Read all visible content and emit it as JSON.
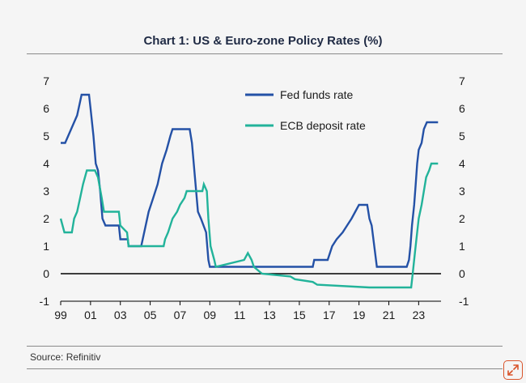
{
  "title": "Chart 1: US & Euro-zone Policy Rates (%)",
  "source": "Source: Refinitiv",
  "colors": {
    "fed": "#2451a6",
    "ecb": "#22b39a",
    "zero": "#000000",
    "text": "#1a1a1a"
  },
  "icons": {
    "expand": "expand-diagonal-icon"
  },
  "chart_data": {
    "type": "line",
    "title": "Chart 1: US & Euro-zone Policy Rates (%)",
    "xlabel": "",
    "ylabel": "",
    "xlim": [
      1999.0,
      2024.5
    ],
    "ylim": [
      -1,
      7
    ],
    "x_ticks": [
      1999,
      2001,
      2003,
      2005,
      2007,
      2009,
      2011,
      2013,
      2015,
      2017,
      2019,
      2021,
      2023
    ],
    "x_tick_labels": [
      "99",
      "01",
      "03",
      "05",
      "07",
      "09",
      "11",
      "13",
      "15",
      "17",
      "19",
      "21",
      "23"
    ],
    "y_ticks": [
      -1,
      0,
      1,
      2,
      3,
      4,
      5,
      6,
      7
    ],
    "y_tick_labels": [
      "-1",
      "0",
      "1",
      "2",
      "3",
      "4",
      "5",
      "6",
      "7"
    ],
    "grid": false,
    "legend_position": "top-center",
    "series": [
      {
        "name": "Fed funds rate",
        "color": "#2451a6",
        "points": [
          [
            1999.0,
            4.75
          ],
          [
            1999.3,
            4.75
          ],
          [
            1999.5,
            5.0
          ],
          [
            1999.7,
            5.25
          ],
          [
            1999.9,
            5.5
          ],
          [
            2000.1,
            5.75
          ],
          [
            2000.3,
            6.25
          ],
          [
            2000.4,
            6.5
          ],
          [
            2000.9,
            6.5
          ],
          [
            2001.0,
            6.0
          ],
          [
            2001.2,
            5.0
          ],
          [
            2001.35,
            4.0
          ],
          [
            2001.5,
            3.75
          ],
          [
            2001.65,
            3.0
          ],
          [
            2001.8,
            2.0
          ],
          [
            2002.0,
            1.75
          ],
          [
            2002.9,
            1.75
          ],
          [
            2003.0,
            1.25
          ],
          [
            2003.5,
            1.25
          ],
          [
            2003.55,
            1.0
          ],
          [
            2004.4,
            1.0
          ],
          [
            2004.6,
            1.5
          ],
          [
            2004.9,
            2.25
          ],
          [
            2005.2,
            2.75
          ],
          [
            2005.5,
            3.25
          ],
          [
            2005.8,
            4.0
          ],
          [
            2006.1,
            4.5
          ],
          [
            2006.35,
            5.0
          ],
          [
            2006.5,
            5.25
          ],
          [
            2007.65,
            5.25
          ],
          [
            2007.8,
            4.75
          ],
          [
            2008.0,
            3.5
          ],
          [
            2008.2,
            2.25
          ],
          [
            2008.4,
            2.0
          ],
          [
            2008.75,
            1.5
          ],
          [
            2008.9,
            0.5
          ],
          [
            2009.0,
            0.25
          ],
          [
            2015.9,
            0.25
          ],
          [
            2016.0,
            0.5
          ],
          [
            2016.9,
            0.5
          ],
          [
            2017.2,
            1.0
          ],
          [
            2017.5,
            1.25
          ],
          [
            2017.9,
            1.5
          ],
          [
            2018.2,
            1.75
          ],
          [
            2018.5,
            2.0
          ],
          [
            2018.75,
            2.25
          ],
          [
            2019.0,
            2.5
          ],
          [
            2019.55,
            2.5
          ],
          [
            2019.7,
            2.0
          ],
          [
            2019.85,
            1.75
          ],
          [
            2020.2,
            0.25
          ],
          [
            2022.2,
            0.25
          ],
          [
            2022.35,
            0.5
          ],
          [
            2022.45,
            1.0
          ],
          [
            2022.55,
            1.75
          ],
          [
            2022.7,
            2.5
          ],
          [
            2022.8,
            3.25
          ],
          [
            2022.9,
            4.0
          ],
          [
            2023.0,
            4.5
          ],
          [
            2023.2,
            4.75
          ],
          [
            2023.35,
            5.25
          ],
          [
            2023.55,
            5.5
          ],
          [
            2024.3,
            5.5
          ]
        ]
      },
      {
        "name": "ECB deposit rate",
        "color": "#22b39a",
        "points": [
          [
            1999.0,
            2.0
          ],
          [
            1999.25,
            1.5
          ],
          [
            1999.75,
            1.5
          ],
          [
            1999.9,
            2.0
          ],
          [
            2000.1,
            2.25
          ],
          [
            2000.3,
            2.75
          ],
          [
            2000.5,
            3.25
          ],
          [
            2000.75,
            3.75
          ],
          [
            2001.3,
            3.75
          ],
          [
            2001.5,
            3.5
          ],
          [
            2001.75,
            2.75
          ],
          [
            2001.9,
            2.25
          ],
          [
            2002.9,
            2.25
          ],
          [
            2003.0,
            1.75
          ],
          [
            2003.45,
            1.5
          ],
          [
            2003.55,
            1.0
          ],
          [
            2005.9,
            1.0
          ],
          [
            2006.0,
            1.25
          ],
          [
            2006.2,
            1.5
          ],
          [
            2006.5,
            2.0
          ],
          [
            2006.8,
            2.25
          ],
          [
            2007.0,
            2.5
          ],
          [
            2007.3,
            2.75
          ],
          [
            2007.45,
            3.0
          ],
          [
            2008.5,
            3.0
          ],
          [
            2008.6,
            3.25
          ],
          [
            2008.8,
            3.0
          ],
          [
            2008.9,
            2.0
          ],
          [
            2009.05,
            1.0
          ],
          [
            2009.3,
            0.5
          ],
          [
            2009.4,
            0.25
          ],
          [
            2011.3,
            0.5
          ],
          [
            2011.55,
            0.75
          ],
          [
            2011.8,
            0.5
          ],
          [
            2011.95,
            0.25
          ],
          [
            2012.5,
            0.0
          ],
          [
            2014.4,
            -0.1
          ],
          [
            2014.7,
            -0.2
          ],
          [
            2015.9,
            -0.3
          ],
          [
            2016.2,
            -0.4
          ],
          [
            2019.7,
            -0.5
          ],
          [
            2022.5,
            -0.5
          ],
          [
            2022.6,
            0.0
          ],
          [
            2022.75,
            0.75
          ],
          [
            2022.9,
            1.5
          ],
          [
            2023.0,
            2.0
          ],
          [
            2023.2,
            2.5
          ],
          [
            2023.35,
            3.0
          ],
          [
            2023.5,
            3.5
          ],
          [
            2023.7,
            3.75
          ],
          [
            2023.85,
            4.0
          ],
          [
            2024.3,
            4.0
          ]
        ]
      }
    ]
  }
}
